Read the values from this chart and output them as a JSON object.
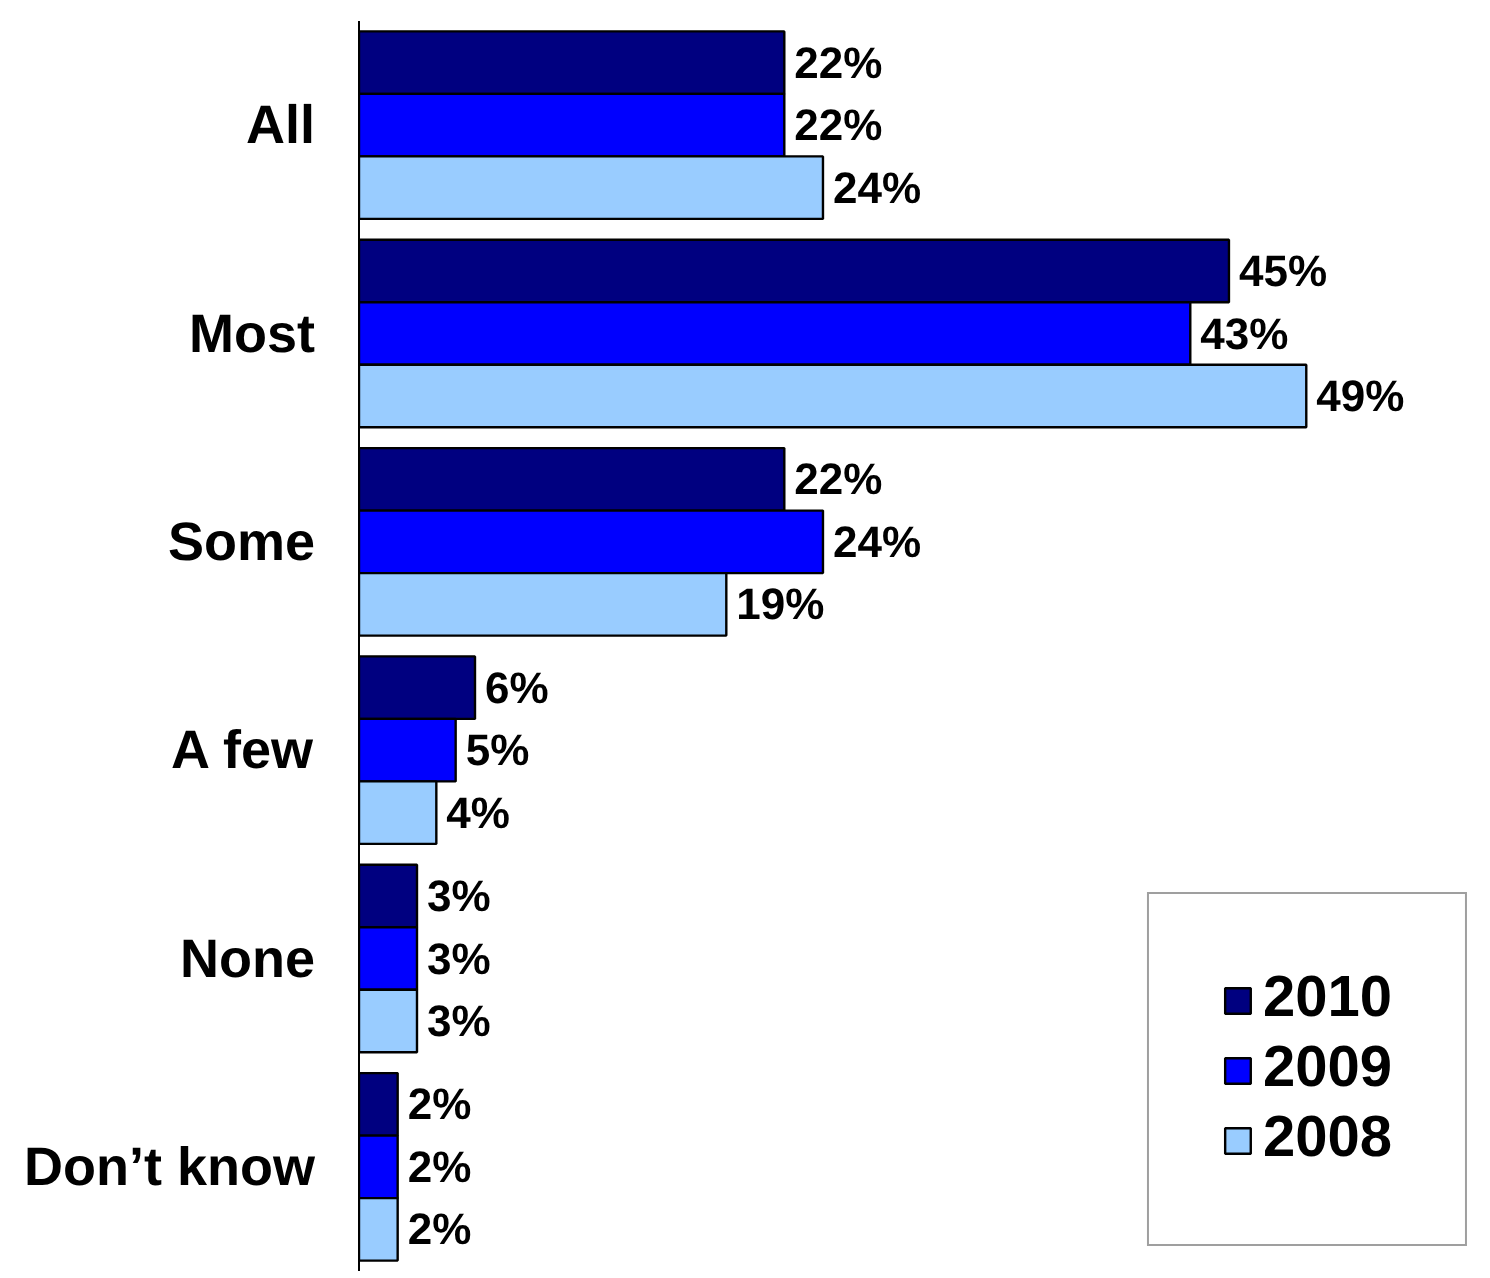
{
  "chart_data": {
    "type": "bar",
    "orientation": "horizontal",
    "categories": [
      "All",
      "Most",
      "Some",
      "A few",
      "None",
      "Don’t know"
    ],
    "series": [
      {
        "name": "2010",
        "color": "#000080",
        "values": [
          22,
          45,
          22,
          6,
          3,
          2
        ],
        "value_labels": [
          "22%",
          "45%",
          "22%",
          "6%",
          "3%",
          "2%"
        ]
      },
      {
        "name": "2009",
        "color": "#0000ff",
        "values": [
          22,
          43,
          24,
          5,
          3,
          2
        ],
        "value_labels": [
          "22%",
          "43%",
          "24%",
          "5%",
          "3%",
          "2%"
        ]
      },
      {
        "name": "2008",
        "color": "#99ccff",
        "values": [
          24,
          49,
          19,
          4,
          3,
          2
        ],
        "value_labels": [
          "24%",
          "49%",
          "19%",
          "4%",
          "3%",
          "2%"
        ]
      }
    ],
    "tick_labels": "y",
    "legend": "bottom right"
  }
}
